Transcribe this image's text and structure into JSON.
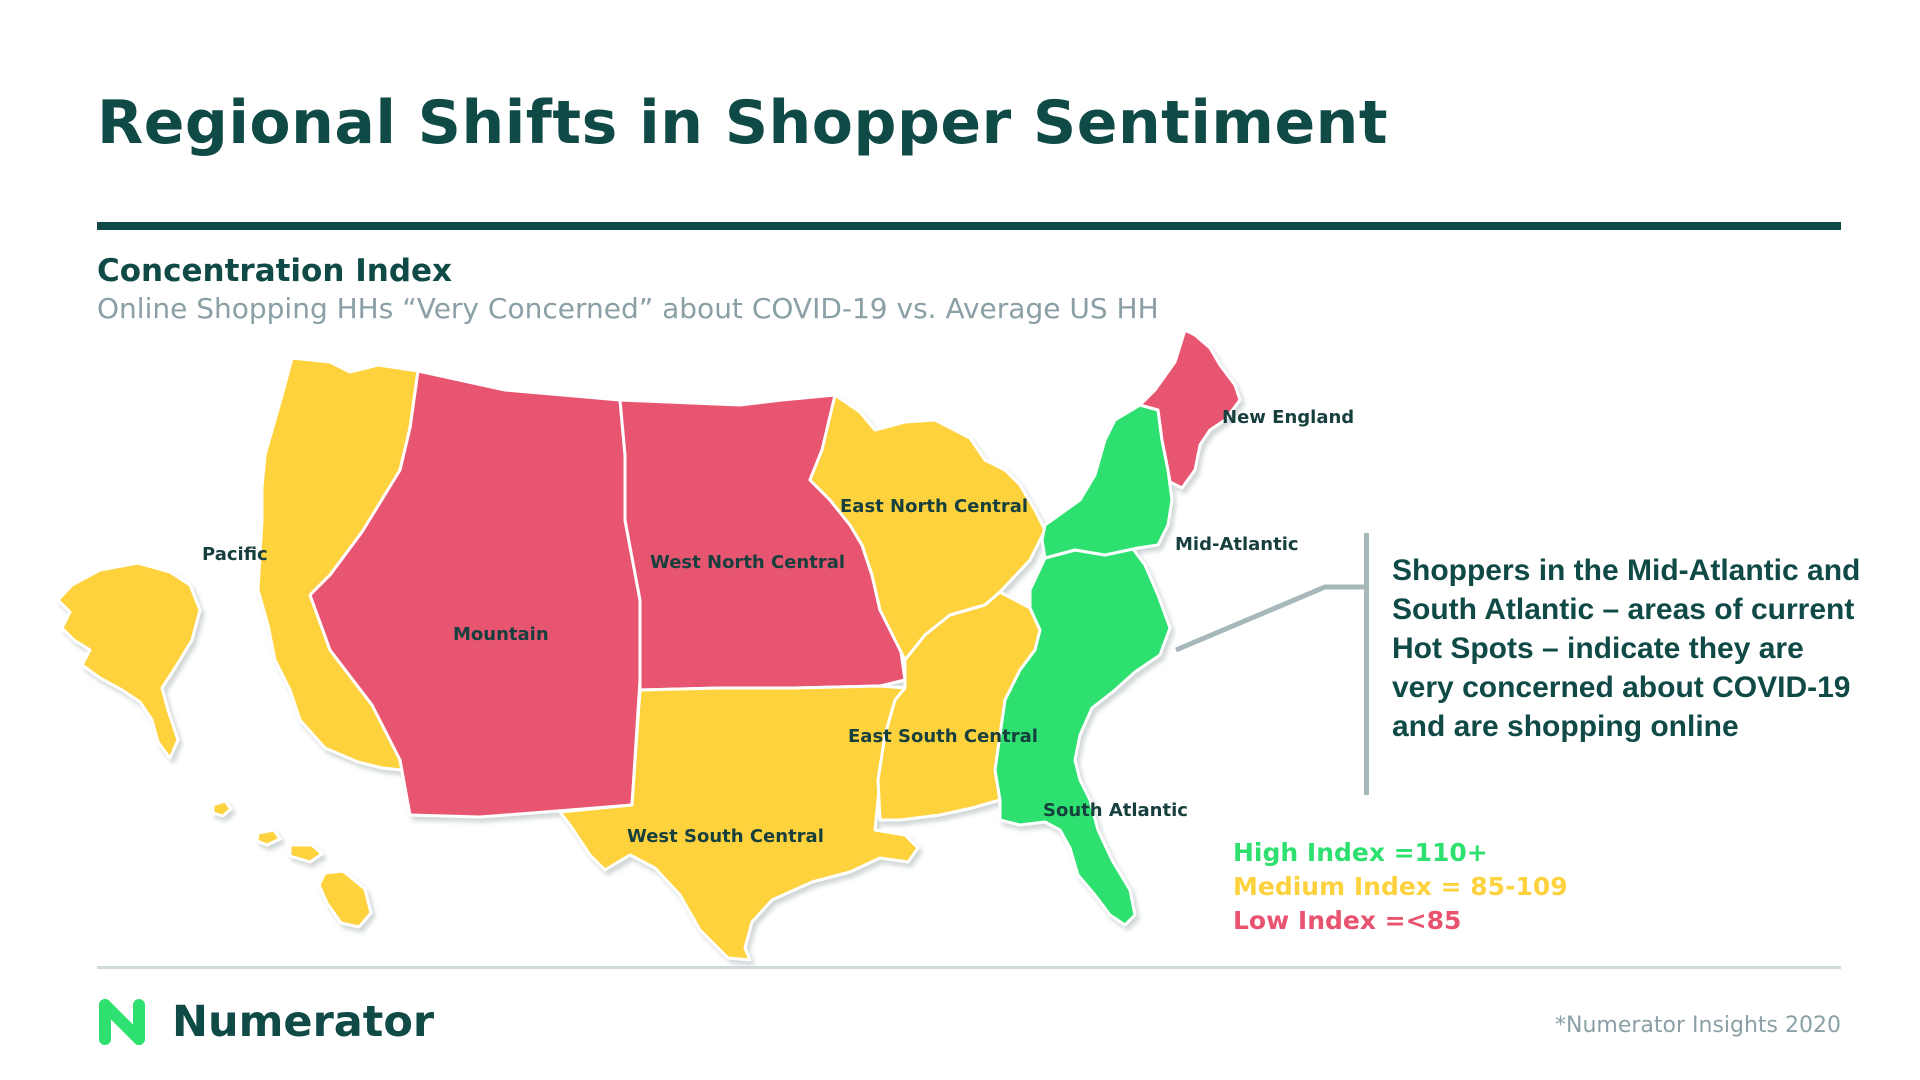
{
  "header": {
    "title": "Regional Shifts in Shopper Sentiment",
    "subtitle": "Concentration Index",
    "description": "Online Shopping HHs “Very Concerned” about COVID-19 vs. Average US HH"
  },
  "map": {
    "regions": [
      {
        "name": "Pacific",
        "index_level": "medium"
      },
      {
        "name": "Mountain",
        "index_level": "low"
      },
      {
        "name": "West North Central",
        "index_level": "low"
      },
      {
        "name": "West South Central",
        "index_level": "medium"
      },
      {
        "name": "East North Central",
        "index_level": "medium"
      },
      {
        "name": "East South Central",
        "index_level": "medium"
      },
      {
        "name": "South Atlantic",
        "index_level": "high"
      },
      {
        "name": "Mid-Atlantic",
        "index_level": "high"
      },
      {
        "name": "New England",
        "index_level": "low"
      }
    ],
    "colors": {
      "high": "#2ee06f",
      "medium": "#fed23e",
      "low": "#e85470"
    }
  },
  "callout": {
    "text": "Shoppers in the Mid-Atlantic and South Atlantic – areas of current Hot Spots – indicate they are very concerned about COVID-19 and are shopping online"
  },
  "legend": [
    {
      "label": "High Index =110+",
      "color": "#2ee06f"
    },
    {
      "label": "Medium Index = 85-109",
      "color": "#fed23e"
    },
    {
      "label": "Low Index =<85",
      "color": "#e85470"
    }
  ],
  "footer": {
    "brand": "Numerator",
    "source": "*Numerator Insights 2020",
    "brand_color": "#0f4a47",
    "logo_color": "#2ee06f"
  }
}
